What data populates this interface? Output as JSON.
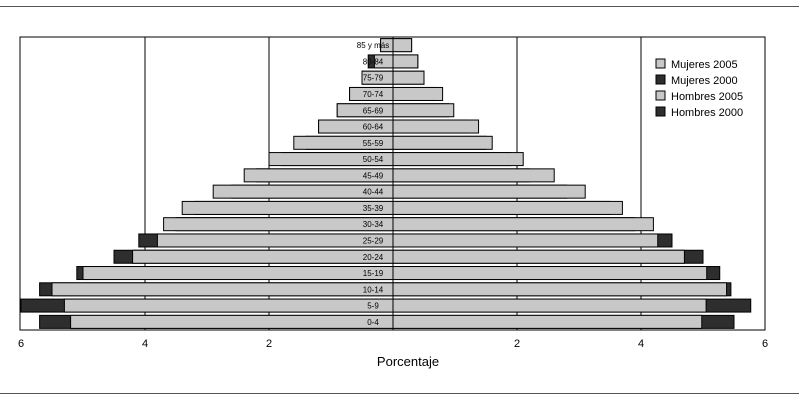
{
  "chart_data": {
    "type": "bar",
    "orientation": "horizontal-population-pyramid",
    "xlabel": "Porcentaje",
    "xlim": [
      -6,
      6
    ],
    "x_ticks": [
      {
        "value": -6,
        "label": "6"
      },
      {
        "value": -4,
        "label": "4"
      },
      {
        "value": -2,
        "label": "2"
      },
      {
        "value": 2,
        "label": "2"
      },
      {
        "value": 4,
        "label": "4"
      },
      {
        "value": 6,
        "label": "6"
      }
    ],
    "grid": "vertical lines at 2, 4, 6 on both sides",
    "legend_position": "top-right",
    "categories": [
      "0-4",
      "5-9",
      "10-14",
      "15-19",
      "20-24",
      "25-29",
      "30-34",
      "35-39",
      "40-44",
      "45-49",
      "50-54",
      "55-59",
      "60-64",
      "65-69",
      "70-74",
      "75-79",
      "80-84",
      "85 y más"
    ],
    "series": [
      {
        "name": "Mujeres 2005",
        "side": "right",
        "color": "#c8c8c8",
        "values": [
          4.98,
          5.05,
          5.38,
          5.06,
          4.7,
          4.27,
          4.2,
          3.7,
          3.1,
          2.6,
          2.1,
          1.6,
          1.38,
          0.98,
          0.8,
          0.5,
          0.4,
          0.3
        ]
      },
      {
        "name": "Mujeres 2000",
        "side": "right",
        "color": "#2e2e2e",
        "values": [
          5.5,
          5.77,
          5.45,
          5.27,
          5.0,
          4.5,
          3.9,
          3.5,
          2.8,
          2.2,
          1.9,
          1.5,
          1.2,
          0.9,
          0.7,
          0.5,
          0.4,
          0.3
        ]
      },
      {
        "name": "Hombres 2005",
        "side": "left",
        "color": "#c8c8c8",
        "values": [
          5.2,
          5.3,
          5.5,
          5.0,
          4.2,
          3.8,
          3.7,
          3.4,
          2.9,
          2.4,
          2.0,
          1.6,
          1.2,
          0.9,
          0.7,
          0.5,
          0.3,
          0.2
        ]
      },
      {
        "name": "Hombres 2000",
        "side": "left",
        "color": "#2e2e2e",
        "values": [
          5.7,
          6.0,
          5.7,
          5.1,
          4.5,
          4.1,
          3.5,
          3.2,
          2.6,
          2.2,
          1.8,
          1.4,
          1.2,
          0.9,
          0.7,
          0.5,
          0.4,
          0.2
        ]
      }
    ]
  }
}
